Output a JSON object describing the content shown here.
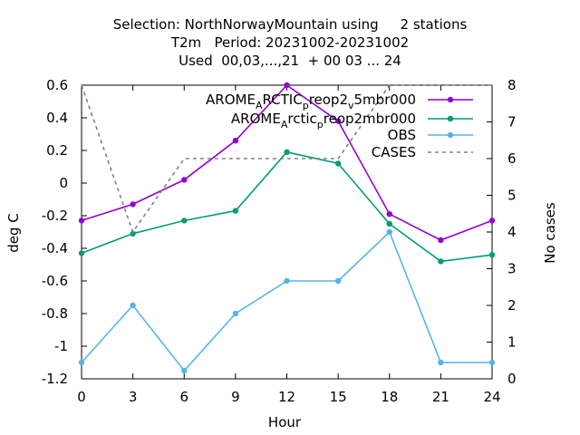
{
  "titles": [
    "Selection: NorthNorwayMountain using     2 stations",
    "T2m   Period: 20231002-20231002",
    "Used  00,03,...,21  + 00 03 ... 24"
  ],
  "chart_data": {
    "type": "line",
    "xlabel": "Hour",
    "ylabel": "deg C",
    "y2label": "No cases",
    "xlim": [
      0,
      24
    ],
    "ylim": [
      -1.2,
      0.6
    ],
    "y2lim": [
      0,
      8
    ],
    "x_ticks": [
      "0",
      "3",
      "6",
      "9",
      "12",
      "15",
      "18",
      "21",
      "24"
    ],
    "y_ticks": [
      "-1.2",
      "-1",
      "-0.8",
      "-0.6",
      "-0.4",
      "-0.2",
      "0",
      "0.2",
      "0.4",
      "0.6"
    ],
    "y2_ticks": [
      "0",
      "1",
      "2",
      "3",
      "4",
      "5",
      "6",
      "7",
      "8"
    ],
    "x": [
      0,
      3,
      6,
      9,
      12,
      15,
      18,
      21,
      24
    ],
    "legend_position": "top-right",
    "grid": false,
    "series": [
      {
        "name_parts": [
          {
            "t": "AROME",
            "s": "n"
          },
          {
            "t": "A",
            "s": "sub"
          },
          {
            "t": "RCTIC",
            "s": "n"
          },
          {
            "t": "p",
            "s": "sub"
          },
          {
            "t": "reop2",
            "s": "n"
          },
          {
            "t": "v",
            "s": "sub"
          },
          {
            "t": "5mbr000",
            "s": "n"
          }
        ],
        "color": "#9400d3",
        "axis": "y",
        "values": [
          -0.23,
          -0.13,
          0.02,
          0.26,
          0.6,
          0.38,
          -0.19,
          -0.35,
          -0.23
        ]
      },
      {
        "name_parts": [
          {
            "t": "AROME",
            "s": "n"
          },
          {
            "t": "A",
            "s": "sub"
          },
          {
            "t": "rctic",
            "s": "n"
          },
          {
            "t": "p",
            "s": "sub"
          },
          {
            "t": "reop2mbr000",
            "s": "n"
          }
        ],
        "color": "#009e73",
        "axis": "y",
        "values": [
          -0.43,
          -0.31,
          -0.23,
          -0.17,
          0.19,
          0.12,
          -0.25,
          -0.48,
          -0.44
        ]
      },
      {
        "name_parts": [
          {
            "t": "OBS",
            "s": "n"
          }
        ],
        "color": "#56b4e9",
        "axis": "y",
        "values": [
          -1.1,
          -0.75,
          -1.15,
          -0.8,
          -0.6,
          -0.6,
          -0.3,
          -1.1,
          -1.1
        ]
      },
      {
        "name_parts": [
          {
            "t": "CASES",
            "s": "n"
          }
        ],
        "color": "#808080",
        "axis": "y2",
        "dashed": true,
        "values": [
          8,
          4,
          6,
          6,
          6,
          6,
          8,
          8,
          8
        ]
      }
    ]
  }
}
